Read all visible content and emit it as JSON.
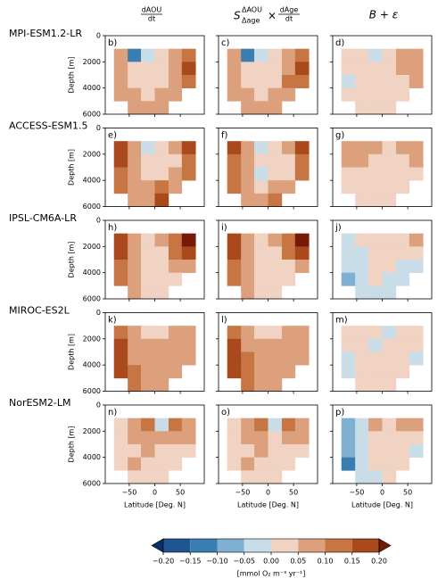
{
  "chart_data": {
    "type": "heatmap",
    "headers": [
      {
        "numerator": "dAOU",
        "denominator": "dt"
      },
      {
        "symbol": "S",
        "sup": "ΔAOU",
        "sub": "Δage",
        "times": "×",
        "numerator": "dAge",
        "denominator": "dt"
      },
      {
        "text": "B + ε"
      }
    ],
    "models": [
      "MPI-ESM1.2-LR",
      "ACCESS-ESM1.5",
      "IPSL-CM6A-LR",
      "MIROC-ES2L",
      "NorESM2-LM"
    ],
    "ylabel": "Depth [m]",
    "xlabel": "Latitude [Deg. N]",
    "xlim": [
      -97,
      97
    ],
    "xticks": [
      {
        "value": -50,
        "label": "−50"
      },
      0,
      50
    ],
    "ylim": [
      6000,
      0
    ],
    "yticks": [
      0,
      2000,
      4000,
      6000
    ],
    "x_edges": [
      -80,
      -53,
      -27,
      0,
      27,
      53,
      80
    ],
    "y_edges": [
      1000,
      2000,
      3000,
      4000,
      5000,
      6000
    ],
    "panels": [
      {
        "label": "b)",
        "values": [
          [
            0.07,
            -0.12,
            -0.03,
            0.02,
            0.07,
            0.12
          ],
          [
            0.07,
            0.02,
            0.02,
            0.02,
            0.07,
            0.17
          ],
          [
            0.07,
            0.02,
            0.02,
            0.02,
            0.07,
            0.12
          ],
          [
            0.07,
            0.07,
            0.02,
            0.07,
            0.07,
            null
          ],
          [
            null,
            0.07,
            0.07,
            0.07,
            null,
            null
          ]
        ]
      },
      {
        "label": "c)",
        "values": [
          [
            0.07,
            -0.12,
            -0.03,
            0.02,
            0.07,
            0.12
          ],
          [
            0.07,
            0.02,
            0.02,
            0.02,
            0.07,
            0.17
          ],
          [
            0.07,
            0.02,
            0.02,
            0.02,
            0.12,
            0.12
          ],
          [
            0.07,
            0.07,
            0.02,
            0.07,
            0.07,
            null
          ],
          [
            null,
            0.07,
            0.07,
            0.07,
            null,
            null
          ]
        ]
      },
      {
        "label": "d)",
        "values": [
          [
            0.02,
            0.02,
            -0.03,
            0.02,
            0.07,
            0.07
          ],
          [
            0.02,
            0.02,
            0.02,
            0.02,
            0.07,
            0.07
          ],
          [
            -0.03,
            0.02,
            0.02,
            0.02,
            0.02,
            0.07
          ],
          [
            0.02,
            0.02,
            0.02,
            0.02,
            0.02,
            null
          ],
          [
            null,
            0.02,
            0.02,
            0.02,
            null,
            null
          ]
        ]
      },
      {
        "label": "e)",
        "values": [
          [
            0.17,
            0.07,
            -0.03,
            0.02,
            0.07,
            0.17
          ],
          [
            0.17,
            0.07,
            0.02,
            0.02,
            0.02,
            0.12
          ],
          [
            0.12,
            0.07,
            0.02,
            0.02,
            0.07,
            0.12
          ],
          [
            0.12,
            0.07,
            0.07,
            0.12,
            0.07,
            null
          ],
          [
            null,
            0.07,
            0.07,
            0.17,
            null,
            null
          ]
        ]
      },
      {
        "label": "f)",
        "values": [
          [
            0.17,
            0.07,
            -0.03,
            0.02,
            0.07,
            0.17
          ],
          [
            0.12,
            0.07,
            0.02,
            0.02,
            0.02,
            0.12
          ],
          [
            0.12,
            0.07,
            -0.03,
            0.02,
            0.02,
            0.12
          ],
          [
            0.12,
            0.07,
            0.02,
            0.07,
            0.07,
            null
          ],
          [
            null,
            0.07,
            0.07,
            0.12,
            null,
            null
          ]
        ]
      },
      {
        "label": "g)",
        "values": [
          [
            0.07,
            0.07,
            0.07,
            0.02,
            0.07,
            0.07
          ],
          [
            0.07,
            0.07,
            0.02,
            0.02,
            0.02,
            0.07
          ],
          [
            0.02,
            0.02,
            0.02,
            0.02,
            0.02,
            0.02
          ],
          [
            0.02,
            0.02,
            0.02,
            0.02,
            0.02,
            null
          ],
          [
            null,
            0.02,
            0.02,
            0.02,
            null,
            null
          ]
        ]
      },
      {
        "label": "h)",
        "values": [
          [
            0.17,
            0.07,
            0.02,
            0.07,
            0.12,
            0.22
          ],
          [
            0.17,
            0.07,
            0.02,
            0.02,
            0.12,
            0.17
          ],
          [
            0.12,
            0.07,
            0.02,
            0.02,
            0.07,
            0.07
          ],
          [
            0.12,
            0.07,
            0.02,
            0.02,
            0.02,
            null
          ],
          [
            null,
            0.07,
            0.02,
            0.02,
            null,
            null
          ]
        ]
      },
      {
        "label": "i)",
        "values": [
          [
            0.17,
            0.07,
            0.02,
            0.07,
            0.12,
            0.22
          ],
          [
            0.17,
            0.07,
            0.02,
            0.02,
            0.12,
            0.17
          ],
          [
            0.12,
            0.07,
            0.02,
            0.02,
            0.02,
            0.07
          ],
          [
            0.12,
            0.07,
            0.02,
            0.02,
            0.02,
            null
          ],
          [
            null,
            0.07,
            0.02,
            0.02,
            null,
            null
          ]
        ]
      },
      {
        "label": "j)",
        "values": [
          [
            -0.03,
            0.02,
            0.02,
            0.02,
            0.02,
            0.07
          ],
          [
            -0.03,
            -0.03,
            0.02,
            0.02,
            0.02,
            0.02
          ],
          [
            -0.03,
            -0.03,
            0.02,
            0.02,
            -0.03,
            -0.03
          ],
          [
            -0.08,
            -0.03,
            0.02,
            -0.03,
            -0.03,
            null
          ],
          [
            null,
            -0.03,
            -0.03,
            -0.03,
            null,
            null
          ]
        ]
      },
      {
        "label": "k)",
        "values": [
          [
            0.12,
            0.07,
            0.02,
            0.02,
            0.07,
            0.07
          ],
          [
            0.17,
            0.07,
            0.07,
            0.07,
            0.07,
            0.07
          ],
          [
            0.17,
            0.07,
            0.07,
            0.07,
            0.07,
            0.07
          ],
          [
            0.17,
            0.12,
            0.07,
            0.07,
            0.07,
            null
          ],
          [
            null,
            0.12,
            0.07,
            0.07,
            null,
            null
          ]
        ]
      },
      {
        "label": "l)",
        "values": [
          [
            0.12,
            0.07,
            0.02,
            0.02,
            0.07,
            0.07
          ],
          [
            0.17,
            0.07,
            0.07,
            0.07,
            0.07,
            0.07
          ],
          [
            0.17,
            0.12,
            0.07,
            0.07,
            0.07,
            0.07
          ],
          [
            0.17,
            0.12,
            0.07,
            0.07,
            0.07,
            null
          ],
          [
            null,
            0.12,
            0.07,
            0.07,
            null,
            null
          ]
        ]
      },
      {
        "label": "m)",
        "values": [
          [
            0.02,
            0.02,
            0.02,
            -0.03,
            0.02,
            0.02
          ],
          [
            0.02,
            0.02,
            -0.03,
            0.02,
            0.02,
            0.02
          ],
          [
            -0.03,
            0.02,
            0.02,
            0.02,
            0.02,
            -0.03
          ],
          [
            -0.03,
            0.02,
            0.02,
            0.02,
            0.02,
            null
          ],
          [
            null,
            0.02,
            0.02,
            0.02,
            null,
            null
          ]
        ]
      },
      {
        "label": "n)",
        "values": [
          [
            0.02,
            0.07,
            0.12,
            -0.03,
            0.12,
            0.07
          ],
          [
            0.02,
            0.07,
            0.07,
            0.07,
            0.07,
            0.07
          ],
          [
            0.02,
            0.02,
            0.07,
            0.02,
            0.02,
            0.02
          ],
          [
            0.02,
            0.07,
            0.02,
            0.02,
            0.02,
            null
          ],
          [
            null,
            0.02,
            0.02,
            0.02,
            null,
            null
          ]
        ]
      },
      {
        "label": "o)",
        "values": [
          [
            0.02,
            0.07,
            0.12,
            -0.03,
            0.12,
            0.07
          ],
          [
            0.02,
            0.07,
            0.07,
            0.02,
            0.07,
            0.07
          ],
          [
            0.02,
            0.02,
            0.07,
            0.02,
            0.02,
            0.02
          ],
          [
            0.02,
            0.07,
            0.02,
            0.02,
            0.02,
            null
          ],
          [
            null,
            0.02,
            0.02,
            0.02,
            null,
            null
          ]
        ]
      },
      {
        "label": "p)",
        "values": [
          [
            -0.08,
            -0.03,
            0.07,
            0.02,
            0.07,
            0.07
          ],
          [
            -0.08,
            -0.03,
            0.02,
            0.02,
            0.02,
            0.02
          ],
          [
            -0.08,
            -0.03,
            0.02,
            0.02,
            0.02,
            -0.03
          ],
          [
            -0.13,
            -0.03,
            0.02,
            0.02,
            0.02,
            null
          ],
          [
            null,
            -0.03,
            -0.03,
            0.02,
            null,
            null
          ]
        ]
      }
    ],
    "colorbar": {
      "levels": [
        -0.2,
        -0.15,
        -0.1,
        -0.05,
        0,
        0.05,
        0.1,
        0.15,
        0.2
      ],
      "colors": [
        "#0b2f66",
        "#1f5591",
        "#3a7db0",
        "#7fb0d2",
        "#c9dde9",
        "#f1d3c4",
        "#dca07c",
        "#c77543",
        "#aa4a1c",
        "#741a06"
      ],
      "ticks": [
        {
          "value": -0.2,
          "label": "−0.20"
        },
        {
          "value": -0.15,
          "label": "−0.15"
        },
        {
          "value": -0.1,
          "label": "−0.10"
        },
        {
          "value": -0.05,
          "label": "−0.05"
        },
        {
          "value": 0,
          "label": "0.00"
        },
        0.05,
        {
          "value": 0.1,
          "label": "0.10"
        },
        0.15,
        {
          "value": 0.2,
          "label": "0.20"
        }
      ],
      "label": "[mmol O₂ m⁻³ yr⁻¹]"
    }
  }
}
